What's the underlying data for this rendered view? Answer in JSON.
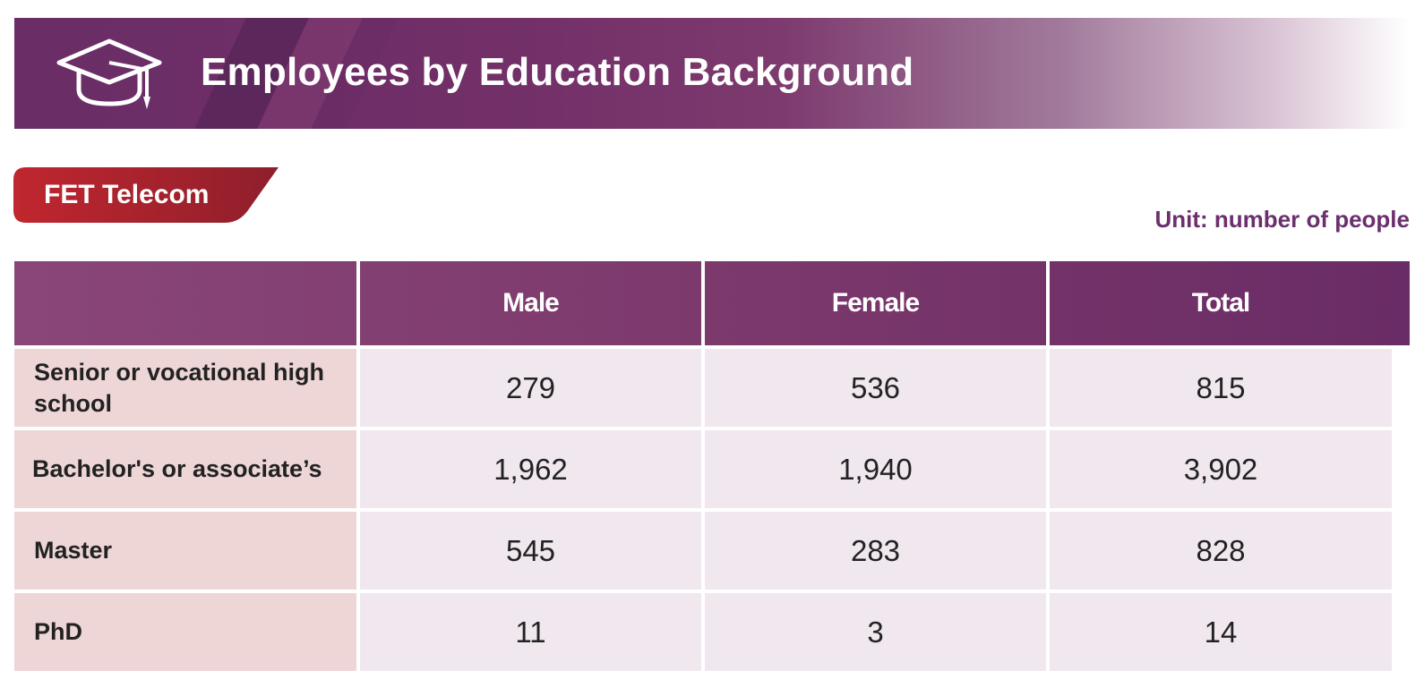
{
  "banner": {
    "title": "Employees by Education Background",
    "icon": "graduation-cap-icon"
  },
  "company": {
    "label": "FET Telecom"
  },
  "unit_note": "Unit: number of people",
  "table": {
    "headers": [
      "",
      "Male",
      "Female",
      "Total"
    ],
    "rows": [
      {
        "label": "Senior or vocational high school",
        "male": "279",
        "female": "536",
        "total": "815"
      },
      {
        "label": "Bachelor's or associate’s",
        "male": "1,962",
        "female": "1,940",
        "total": "3,902"
      },
      {
        "label": "Master",
        "male": "545",
        "female": "283",
        "total": "828"
      },
      {
        "label": "PhD",
        "male": "11",
        "female": "3",
        "total": "14"
      }
    ]
  },
  "colors": {
    "banner": "#722f68",
    "company_tag": "#b8232d",
    "unit_text": "#6c2f6e",
    "label_cell": "#eed6d7",
    "value_cell": "#f0e8ee"
  }
}
